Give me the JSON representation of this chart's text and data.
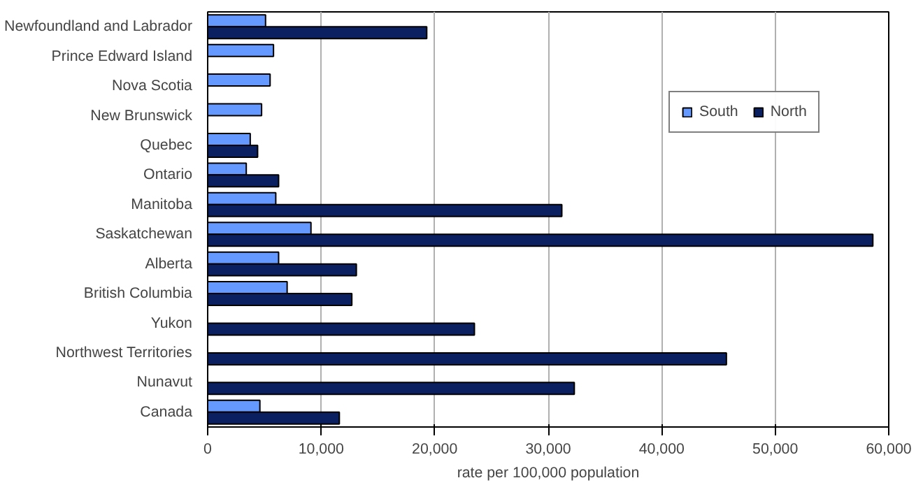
{
  "chart_data": {
    "type": "bar",
    "orientation": "horizontal",
    "xlabel": "rate per 100,000 population",
    "categories": [
      "Newfoundland and Labrador",
      "Prince Edward Island",
      "Nova Scotia",
      "New Brunswick",
      "Quebec",
      "Ontario",
      "Manitoba",
      "Saskatchewan",
      "Alberta",
      "British Columbia",
      "Yukon",
      "Northwest Territories",
      "Nunavut",
      "Canada"
    ],
    "series": [
      {
        "name": "South",
        "color": "#6699ff",
        "values": [
          5100,
          5800,
          5500,
          4750,
          3750,
          3400,
          6000,
          9100,
          6250,
          7000,
          null,
          null,
          null,
          4600
        ]
      },
      {
        "name": "North",
        "color": "#0a2060",
        "values": [
          19300,
          null,
          null,
          null,
          4400,
          6250,
          31200,
          58600,
          13100,
          12700,
          23500,
          45700,
          32300,
          11600
        ]
      }
    ],
    "xlim": [
      0,
      60000
    ],
    "xticks": [
      0,
      {
        "value": 10000,
        "label": "10,000"
      },
      {
        "value": 20000,
        "label": "20,000"
      },
      {
        "value": 30000,
        "label": "30,000"
      },
      {
        "value": 40000,
        "label": "40,000"
      },
      {
        "value": 50000,
        "label": "50,000"
      },
      {
        "value": 60000,
        "label": "60,000"
      }
    ],
    "grid": "x",
    "legend": "top right"
  }
}
